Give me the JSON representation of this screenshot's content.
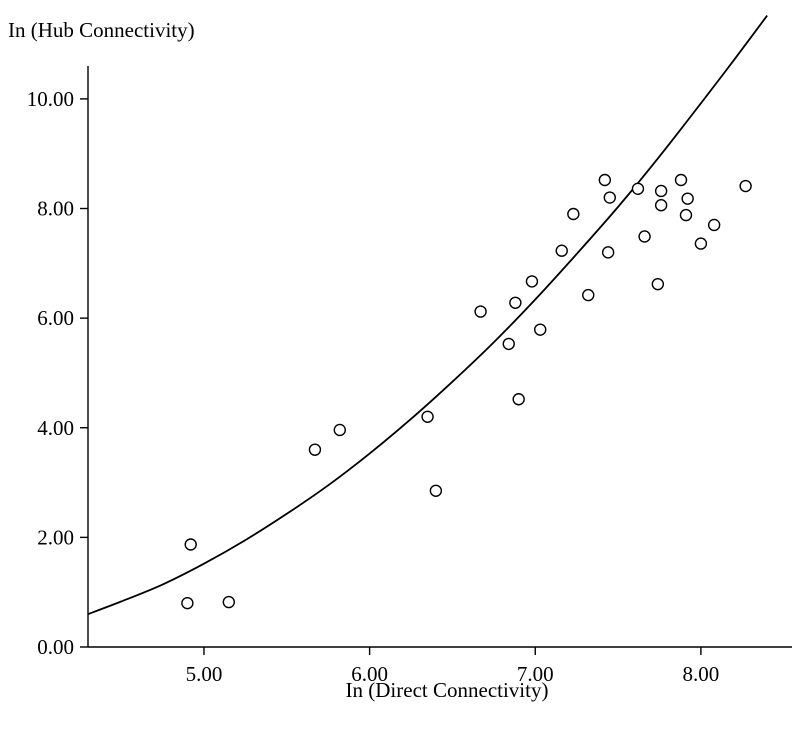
{
  "chart_data": {
    "type": "scatter",
    "xlabel": "In (Direct Connectivity)",
    "ylabel": "In (Hub Connectivity)",
    "xlim": [
      4.3,
      8.55
    ],
    "ylim": [
      0.0,
      10.6
    ],
    "x_ticks": [
      5.0,
      6.0,
      7.0,
      8.0
    ],
    "y_ticks": [
      0.0,
      2.0,
      4.0,
      6.0,
      8.0,
      10.0
    ],
    "x_tick_labels": [
      "5.00",
      "6.00",
      "7.00",
      "8.00"
    ],
    "y_tick_labels": [
      "0.00",
      "2.00",
      "4.00",
      "6.00",
      "8.00",
      "10.00"
    ],
    "grid": false,
    "legend": "none",
    "series": [
      {
        "type": "scatter",
        "x": [
          4.9,
          4.92,
          5.15,
          5.67,
          5.82,
          6.35,
          6.4,
          6.67,
          6.84,
          6.88,
          6.9,
          6.98,
          7.03,
          7.16,
          7.23,
          7.32,
          7.42,
          7.44,
          7.45,
          7.62,
          7.66,
          7.74,
          7.76,
          7.76,
          7.88,
          7.91,
          7.92,
          8.0,
          8.08,
          8.27
        ],
        "y": [
          0.8,
          1.87,
          0.82,
          3.6,
          3.96,
          4.2,
          2.85,
          6.12,
          5.53,
          6.28,
          4.52,
          6.67,
          5.79,
          7.23,
          7.9,
          6.42,
          8.52,
          7.2,
          8.2,
          8.36,
          7.49,
          6.62,
          8.06,
          8.32,
          8.52,
          7.88,
          8.18,
          7.36,
          7.7,
          8.41
        ]
      },
      {
        "type": "line",
        "x": [
          4.3,
          4.5,
          4.75,
          5.0,
          5.25,
          5.5,
          5.75,
          6.0,
          6.25,
          6.5,
          6.75,
          7.0,
          7.25,
          7.5,
          7.75,
          8.0,
          8.2,
          8.4
        ],
        "y": [
          0.6,
          0.83,
          1.14,
          1.52,
          1.95,
          2.43,
          2.95,
          3.53,
          4.16,
          4.84,
          5.56,
          6.34,
          7.17,
          8.03,
          8.95,
          9.92,
          10.71,
          11.52
        ]
      }
    ]
  }
}
